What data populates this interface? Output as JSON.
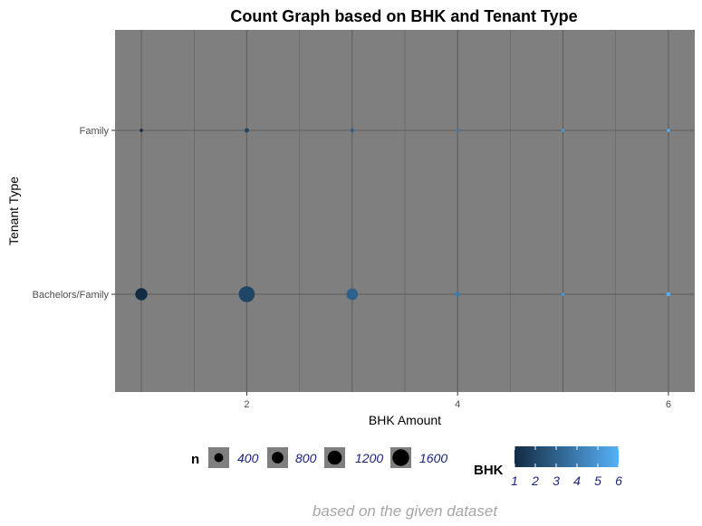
{
  "chart_data": {
    "type": "scatter",
    "title": "Count Graph based on BHK and Tenant Type",
    "xlabel": "BHK Amount",
    "ylabel": "Tenant Type",
    "caption": "based on the given dataset",
    "xlim": [
      0.75,
      6.25
    ],
    "xticks": [
      2,
      4,
      6
    ],
    "categories": [
      "Bachelors/Family",
      "Family"
    ],
    "points": [
      {
        "bhk": 1,
        "tenant": "Family",
        "n": 60
      },
      {
        "bhk": 2,
        "tenant": "Family",
        "n": 150
      },
      {
        "bhk": 3,
        "tenant": "Family",
        "n": 100
      },
      {
        "bhk": 4,
        "tenant": "Family",
        "n": 35
      },
      {
        "bhk": 5,
        "tenant": "Family",
        "n": 8
      },
      {
        "bhk": 6,
        "tenant": "Family",
        "n": 15
      },
      {
        "bhk": 1,
        "tenant": "Bachelors/Family",
        "n": 1050
      },
      {
        "bhk": 2,
        "tenant": "Bachelors/Family",
        "n": 1800
      },
      {
        "bhk": 3,
        "tenant": "Bachelors/Family",
        "n": 950
      },
      {
        "bhk": 4,
        "tenant": "Bachelors/Family",
        "n": 170
      },
      {
        "bhk": 5,
        "tenant": "Bachelors/Family",
        "n": 55
      },
      {
        "bhk": 6,
        "tenant": "Bachelors/Family",
        "n": 120
      }
    ],
    "size_legend": {
      "title": "n",
      "values": [
        400,
        800,
        1200,
        1600
      ]
    },
    "color_legend": {
      "title": "BHK",
      "values": [
        1,
        2,
        3,
        4,
        5,
        6
      ],
      "low": "#132B43",
      "high": "#56B1F7"
    },
    "colors": {
      "panel": "#7f7f7f",
      "grid": "#5e5e5e",
      "key_bg": "#7f7f7f",
      "point_size_key": "#000000"
    },
    "grid": true,
    "legend_position": "bottom"
  }
}
